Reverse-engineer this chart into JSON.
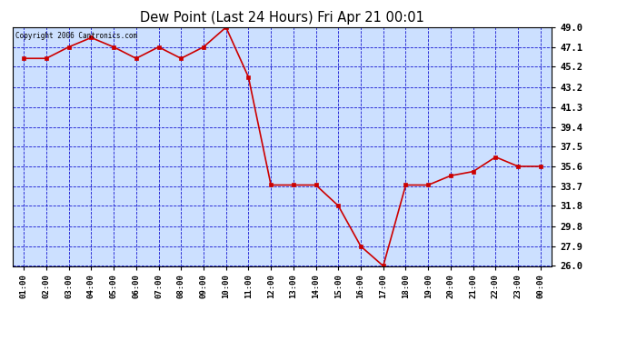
{
  "title": "Dew Point (Last 24 Hours) Fri Apr 21 00:01",
  "copyright": "Copyright 2006 Cantronics.com",
  "x_labels": [
    "01:00",
    "02:00",
    "03:00",
    "04:00",
    "05:00",
    "06:00",
    "07:00",
    "08:00",
    "09:00",
    "10:00",
    "11:00",
    "12:00",
    "13:00",
    "14:00",
    "15:00",
    "16:00",
    "17:00",
    "18:00",
    "19:00",
    "20:00",
    "21:00",
    "22:00",
    "23:00",
    "00:00"
  ],
  "y_values": [
    46.0,
    46.0,
    47.1,
    48.0,
    47.1,
    46.0,
    47.1,
    46.0,
    47.1,
    49.0,
    44.2,
    33.8,
    33.8,
    33.8,
    31.8,
    27.9,
    26.0,
    33.8,
    33.8,
    34.7,
    35.1,
    36.5,
    35.6,
    35.6
  ],
  "line_color": "#cc0000",
  "marker_color": "#cc0000",
  "bg_color": "#ffffff",
  "plot_bg_color": "#cce0ff",
  "grid_color": "#0000cc",
  "title_color": "#000000",
  "border_color": "#000000",
  "y_min": 26.0,
  "y_max": 49.0,
  "y_ticks": [
    49.0,
    47.1,
    45.2,
    43.2,
    41.3,
    39.4,
    37.5,
    35.6,
    33.7,
    31.8,
    29.8,
    27.9,
    26.0
  ]
}
